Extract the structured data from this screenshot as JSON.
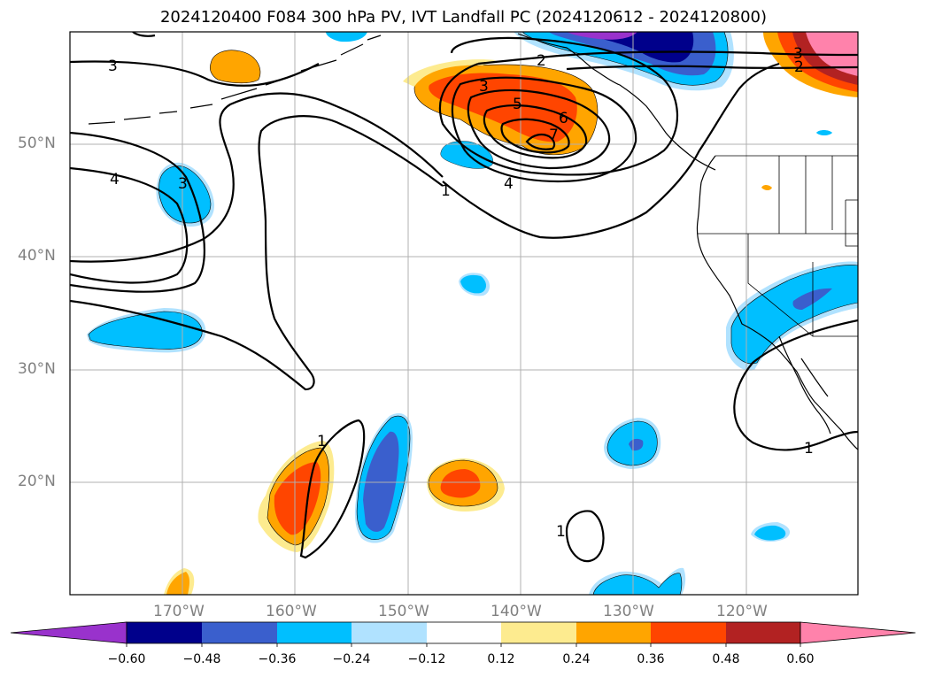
{
  "title": "2024120400 F084 300 hPa PV, IVT Landfall PC (2024120612 - 2024120800)",
  "lon_labels": [
    "170°W",
    "160°W",
    "150°W",
    "140°W",
    "130°W",
    "120°W"
  ],
  "lat_labels": [
    "50°N",
    "40°N",
    "30°N",
    "20°N"
  ],
  "colorbar": {
    "colors": [
      "#9932cc",
      "#00008b",
      "#3a5fcd",
      "#00bfff",
      "#b0e2ff",
      "#ffffff",
      "#fdeb8f",
      "#ffa500",
      "#ff4500",
      "#b22222",
      "#ff82ab"
    ],
    "tick_labels": [
      "−0.60",
      "−0.48",
      "−0.36",
      "−0.24",
      "−0.12",
      "0.12",
      "0.24",
      "0.36",
      "0.48",
      "0.60"
    ]
  },
  "contour_labels": [
    "3",
    "4",
    "3",
    "2",
    "3",
    "5",
    "6",
    "7",
    "4",
    "1",
    "3",
    "2",
    "1",
    "1",
    "1"
  ],
  "colors": {
    "coast": "#000000",
    "contour": "#000000",
    "grid": "#b0b0b0"
  }
}
